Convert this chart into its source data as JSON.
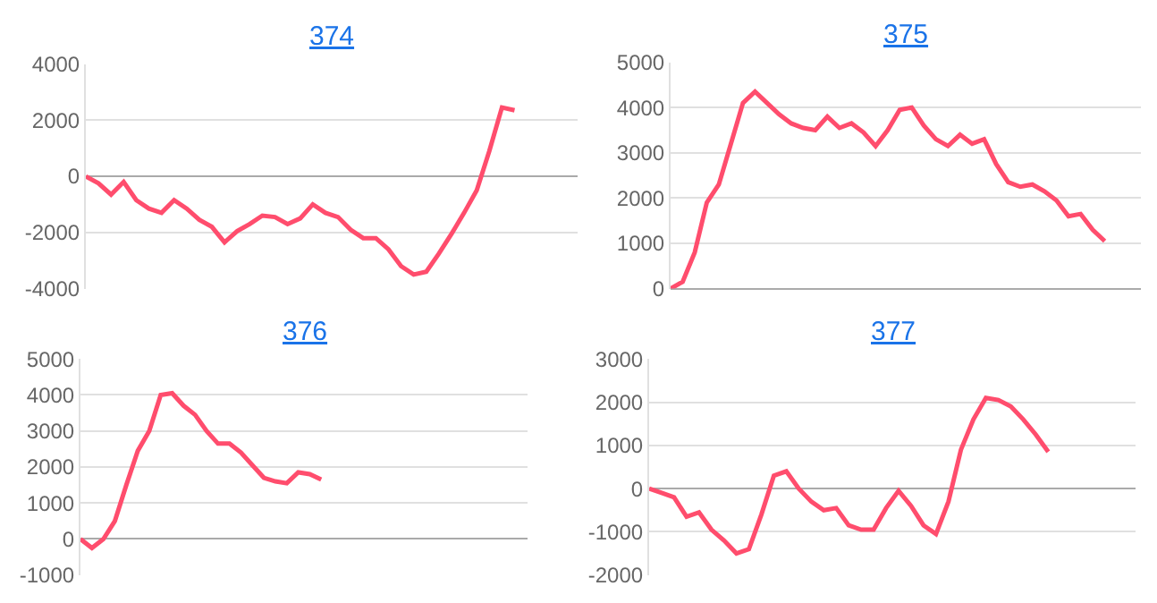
{
  "chart_data": [
    {
      "type": "line",
      "title": "374",
      "color": "#ff4d6d",
      "grid": "y",
      "ylim": [
        -4000,
        4000
      ],
      "yticks": [
        -4000,
        -2000,
        0,
        2000,
        4000
      ],
      "categories": [
        null,
        null,
        null,
        null,
        null,
        null,
        null,
        null,
        null,
        null,
        null,
        null,
        null,
        null,
        null,
        null,
        null,
        null,
        null,
        null,
        null,
        null,
        null,
        null,
        null,
        null,
        null,
        null,
        null,
        null,
        null,
        null,
        null,
        null,
        null,
        null,
        null,
        null,
        null,
        null
      ],
      "values": [
        0,
        -250,
        -650,
        -200,
        -850,
        -1150,
        -1300,
        -850,
        -1150,
        -1550,
        -1800,
        -2350,
        -1950,
        -1700,
        -1400,
        -1450,
        -1700,
        -1500,
        -1000,
        -1300,
        -1450,
        -1900,
        -2200,
        -2200,
        -2600,
        -3200,
        -3500,
        -3400,
        -2750,
        -2050,
        -1300,
        -500,
        900,
        2450,
        2350,
        null,
        null,
        null,
        null,
        null
      ]
    },
    {
      "type": "line",
      "title": "375",
      "color": "#ff4d6d",
      "grid": "y",
      "ylim": [
        0,
        5000
      ],
      "yticks": [
        0,
        1000,
        2000,
        3000,
        4000,
        5000
      ],
      "categories": [
        null,
        null,
        null,
        null,
        null,
        null,
        null,
        null,
        null,
        null,
        null,
        null,
        null,
        null,
        null,
        null,
        null,
        null,
        null,
        null,
        null,
        null,
        null,
        null,
        null,
        null,
        null,
        null,
        null,
        null,
        null,
        null,
        null,
        null,
        null,
        null,
        null,
        null,
        null,
        null
      ],
      "values": [
        0,
        150,
        800,
        1900,
        2300,
        3200,
        4100,
        4350,
        4100,
        3850,
        3650,
        3550,
        3500,
        3800,
        3550,
        3650,
        3450,
        3150,
        3500,
        3950,
        4000,
        3600,
        3300,
        3150,
        3400,
        3200,
        3300,
        2750,
        2350,
        2250,
        2300,
        2150,
        1950,
        1600,
        1650,
        1300,
        1050,
        null,
        null,
        null
      ]
    },
    {
      "type": "line",
      "title": "376",
      "color": "#ff4d6d",
      "grid": "y",
      "ylim": [
        -1000,
        5000
      ],
      "yticks": [
        -1000,
        0,
        1000,
        2000,
        3000,
        4000,
        5000
      ],
      "categories": [
        null,
        null,
        null,
        null,
        null,
        null,
        null,
        null,
        null,
        null,
        null,
        null,
        null,
        null,
        null,
        null,
        null,
        null,
        null,
        null,
        null,
        null,
        null,
        null,
        null,
        null,
        null,
        null,
        null,
        null,
        null,
        null,
        null,
        null,
        null,
        null,
        null,
        null,
        null,
        null
      ],
      "values": [
        0,
        -250,
        0,
        500,
        1500,
        2450,
        3000,
        4000,
        4050,
        3700,
        3450,
        3000,
        2650,
        2650,
        2400,
        2050,
        1700,
        1600,
        1550,
        1850,
        1800,
        1650,
        null,
        null,
        null,
        null,
        null,
        null,
        null,
        null,
        null,
        null,
        null,
        null,
        null,
        null,
        null,
        null,
        null,
        null
      ]
    },
    {
      "type": "line",
      "title": "377",
      "color": "#ff4d6d",
      "grid": "y",
      "ylim": [
        -2000,
        3000
      ],
      "yticks": [
        -2000,
        -1000,
        0,
        1000,
        2000,
        3000
      ],
      "categories": [
        null,
        null,
        null,
        null,
        null,
        null,
        null,
        null,
        null,
        null,
        null,
        null,
        null,
        null,
        null,
        null,
        null,
        null,
        null,
        null,
        null,
        null,
        null,
        null,
        null,
        null,
        null,
        null,
        null,
        null,
        null,
        null,
        null,
        null,
        null,
        null,
        null,
        null,
        null,
        null
      ],
      "values": [
        0,
        -100,
        -200,
        -650,
        -550,
        -950,
        -1200,
        -1500,
        -1400,
        -600,
        300,
        400,
        0,
        -300,
        -500,
        -450,
        -850,
        -950,
        -950,
        -450,
        -50,
        -400,
        -850,
        -1050,
        -300,
        900,
        1600,
        2100,
        2050,
        1900,
        1600,
        1250,
        850,
        null,
        null,
        null,
        null,
        null,
        null,
        null
      ]
    }
  ]
}
